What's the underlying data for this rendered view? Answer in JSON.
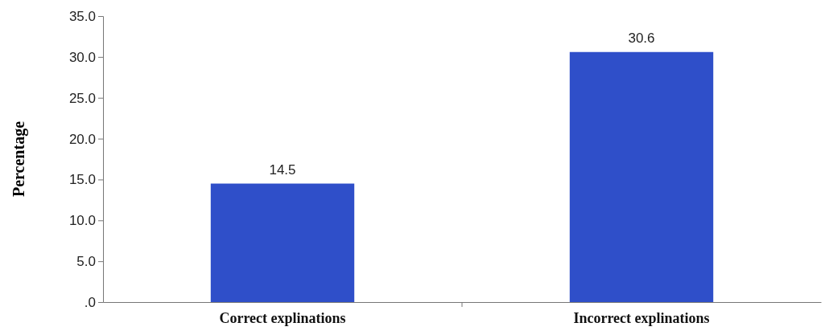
{
  "chart_data": {
    "type": "bar",
    "ylabel": "Percentage",
    "categories": [
      "Correct explinations",
      "Incorrect explinations"
    ],
    "values": [
      14.5,
      30.6
    ],
    "color": "#2f4fc9",
    "ylim": [
      0,
      35
    ],
    "yticks": [
      {
        "value": 0,
        "label": ".0"
      },
      {
        "value": 5,
        "label": "5.0"
      },
      {
        "value": 10,
        "label": "10.0"
      },
      {
        "value": 15,
        "label": "15.0"
      },
      {
        "value": 20,
        "label": "20.0"
      },
      {
        "value": 25,
        "label": "25.0"
      },
      {
        "value": 30,
        "label": "30.0"
      },
      {
        "value": 35,
        "label": "35.0"
      }
    ],
    "data_labels": true
  }
}
